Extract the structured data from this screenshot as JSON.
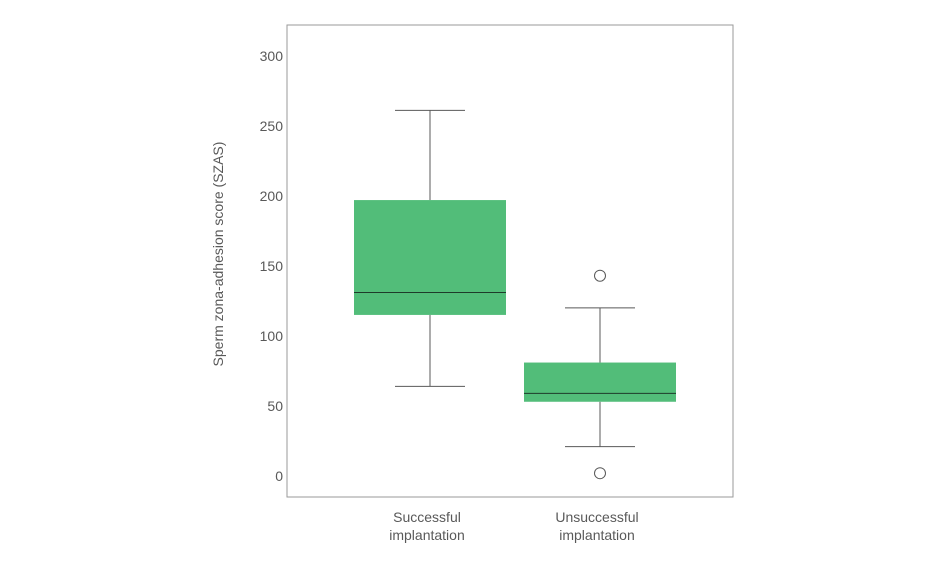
{
  "chart_data": {
    "type": "box",
    "ylabel": "Sperm zona-adhesion score (SZAS)",
    "ylim": [
      -15,
      322
    ],
    "yticks": [
      0,
      50,
      100,
      150,
      200,
      250,
      300
    ],
    "grid": false,
    "box_color": "#52bd79",
    "line_color": "#595959",
    "categories": [
      {
        "label_lines": [
          "Successful",
          "implantation"
        ]
      },
      {
        "label_lines": [
          "Unsuccessful",
          "implantation"
        ]
      }
    ],
    "boxes": [
      {
        "whisker_low": 64,
        "q1": 115,
        "median": 131,
        "q3": 197,
        "whisker_high": 261,
        "outliers": []
      },
      {
        "whisker_low": 21,
        "q1": 53,
        "median": 59,
        "q3": 81,
        "whisker_high": 120,
        "outliers": [
          143,
          2
        ]
      }
    ]
  }
}
